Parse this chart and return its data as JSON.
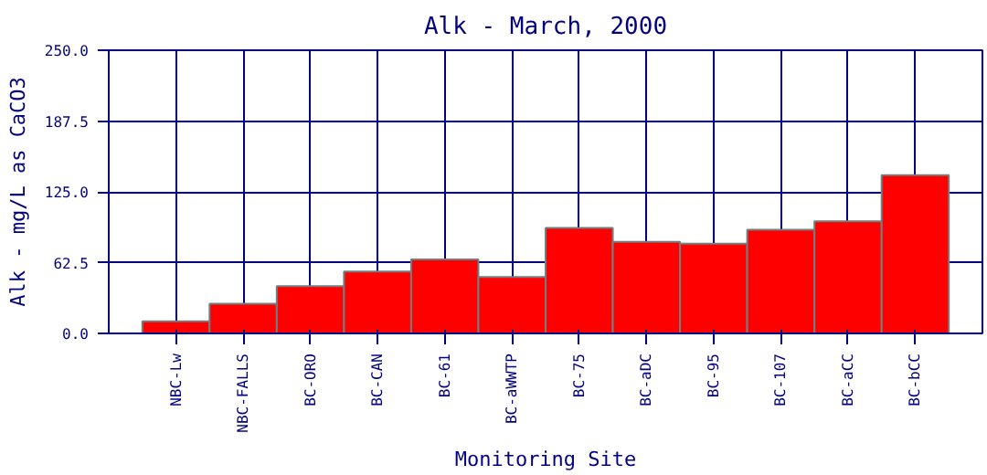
{
  "chart_data": {
    "type": "bar",
    "title": "Alk - March, 2000",
    "xlabel": "Monitoring Site",
    "ylabel": "Alk - mg/L as CaCO3",
    "categories": [
      "NBC-Lw",
      "NBC-FALLS",
      "BC-ORO",
      "BC-CAN",
      "BC-61",
      "BC-aWWTP",
      "BC-75",
      "BC-aDC",
      "BC-95",
      "BC-107",
      "BC-aCC",
      "BC-bCC"
    ],
    "values": [
      10.7,
      26.2,
      41.8,
      54.6,
      65.3,
      49.8,
      93.1,
      80.8,
      79.2,
      91.5,
      99.0,
      139.7
    ],
    "color": "#ff0000",
    "ylim": [
      0,
      250
    ],
    "yticks": [
      {
        "value": 0,
        "label": "0.0"
      },
      {
        "value": 62.5,
        "label": "62.5"
      },
      {
        "value": 125,
        "label": "125.0"
      },
      {
        "value": 187.5,
        "label": "187.5"
      },
      {
        "value": 250,
        "label": "250.0"
      }
    ],
    "grid": true
  }
}
